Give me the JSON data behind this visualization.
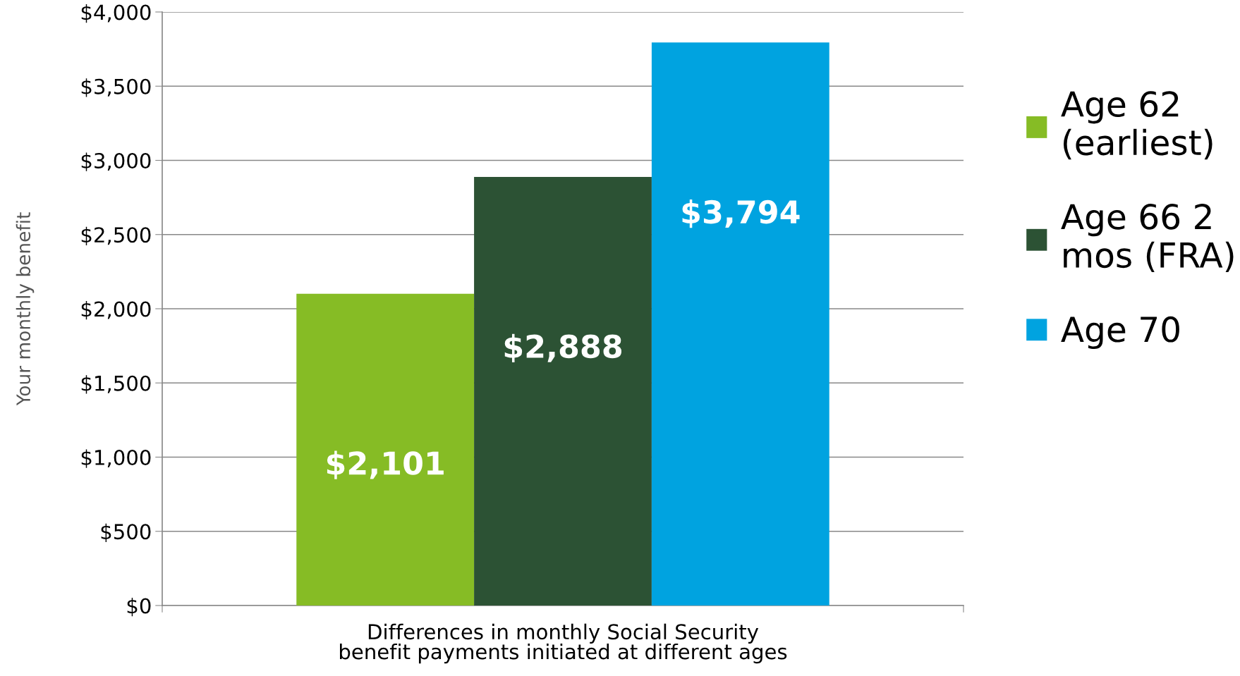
{
  "chart_data": {
    "type": "bar",
    "xlabel": "Differences in monthly Social Security benefit payments initiated at different ages",
    "ylabel": "Your monthly benefit",
    "categories": [
      null
    ],
    "series": [
      {
        "name": "Age 62 (earliest)",
        "color": "#86bc25",
        "values": [
          2101
        ],
        "value_labels": [
          "$2,101"
        ]
      },
      {
        "name": "Age 66 2 mos (FRA)",
        "color": "#2c5234",
        "values": [
          2888
        ],
        "value_labels": [
          "$2,888"
        ]
      },
      {
        "name": "Age 70",
        "color": "#00a3e0",
        "values": [
          3794
        ],
        "value_labels": [
          "$3,794"
        ]
      }
    ],
    "ylim": [
      0,
      4000
    ],
    "yticks": [
      {
        "value": 0,
        "label": "$0"
      },
      {
        "value": 500,
        "label": "$500"
      },
      {
        "value": 1000,
        "label": "$1,000"
      },
      {
        "value": 1500,
        "label": "$1,500"
      },
      {
        "value": 2000,
        "label": "$2,000"
      },
      {
        "value": 2500,
        "label": "$2,500"
      },
      {
        "value": 3000,
        "label": "$3,000"
      },
      {
        "value": 3500,
        "label": "$3,500"
      },
      {
        "value": 4000,
        "label": "$4,000"
      }
    ],
    "grid": "y",
    "legend": "right",
    "data_labels": false
  }
}
